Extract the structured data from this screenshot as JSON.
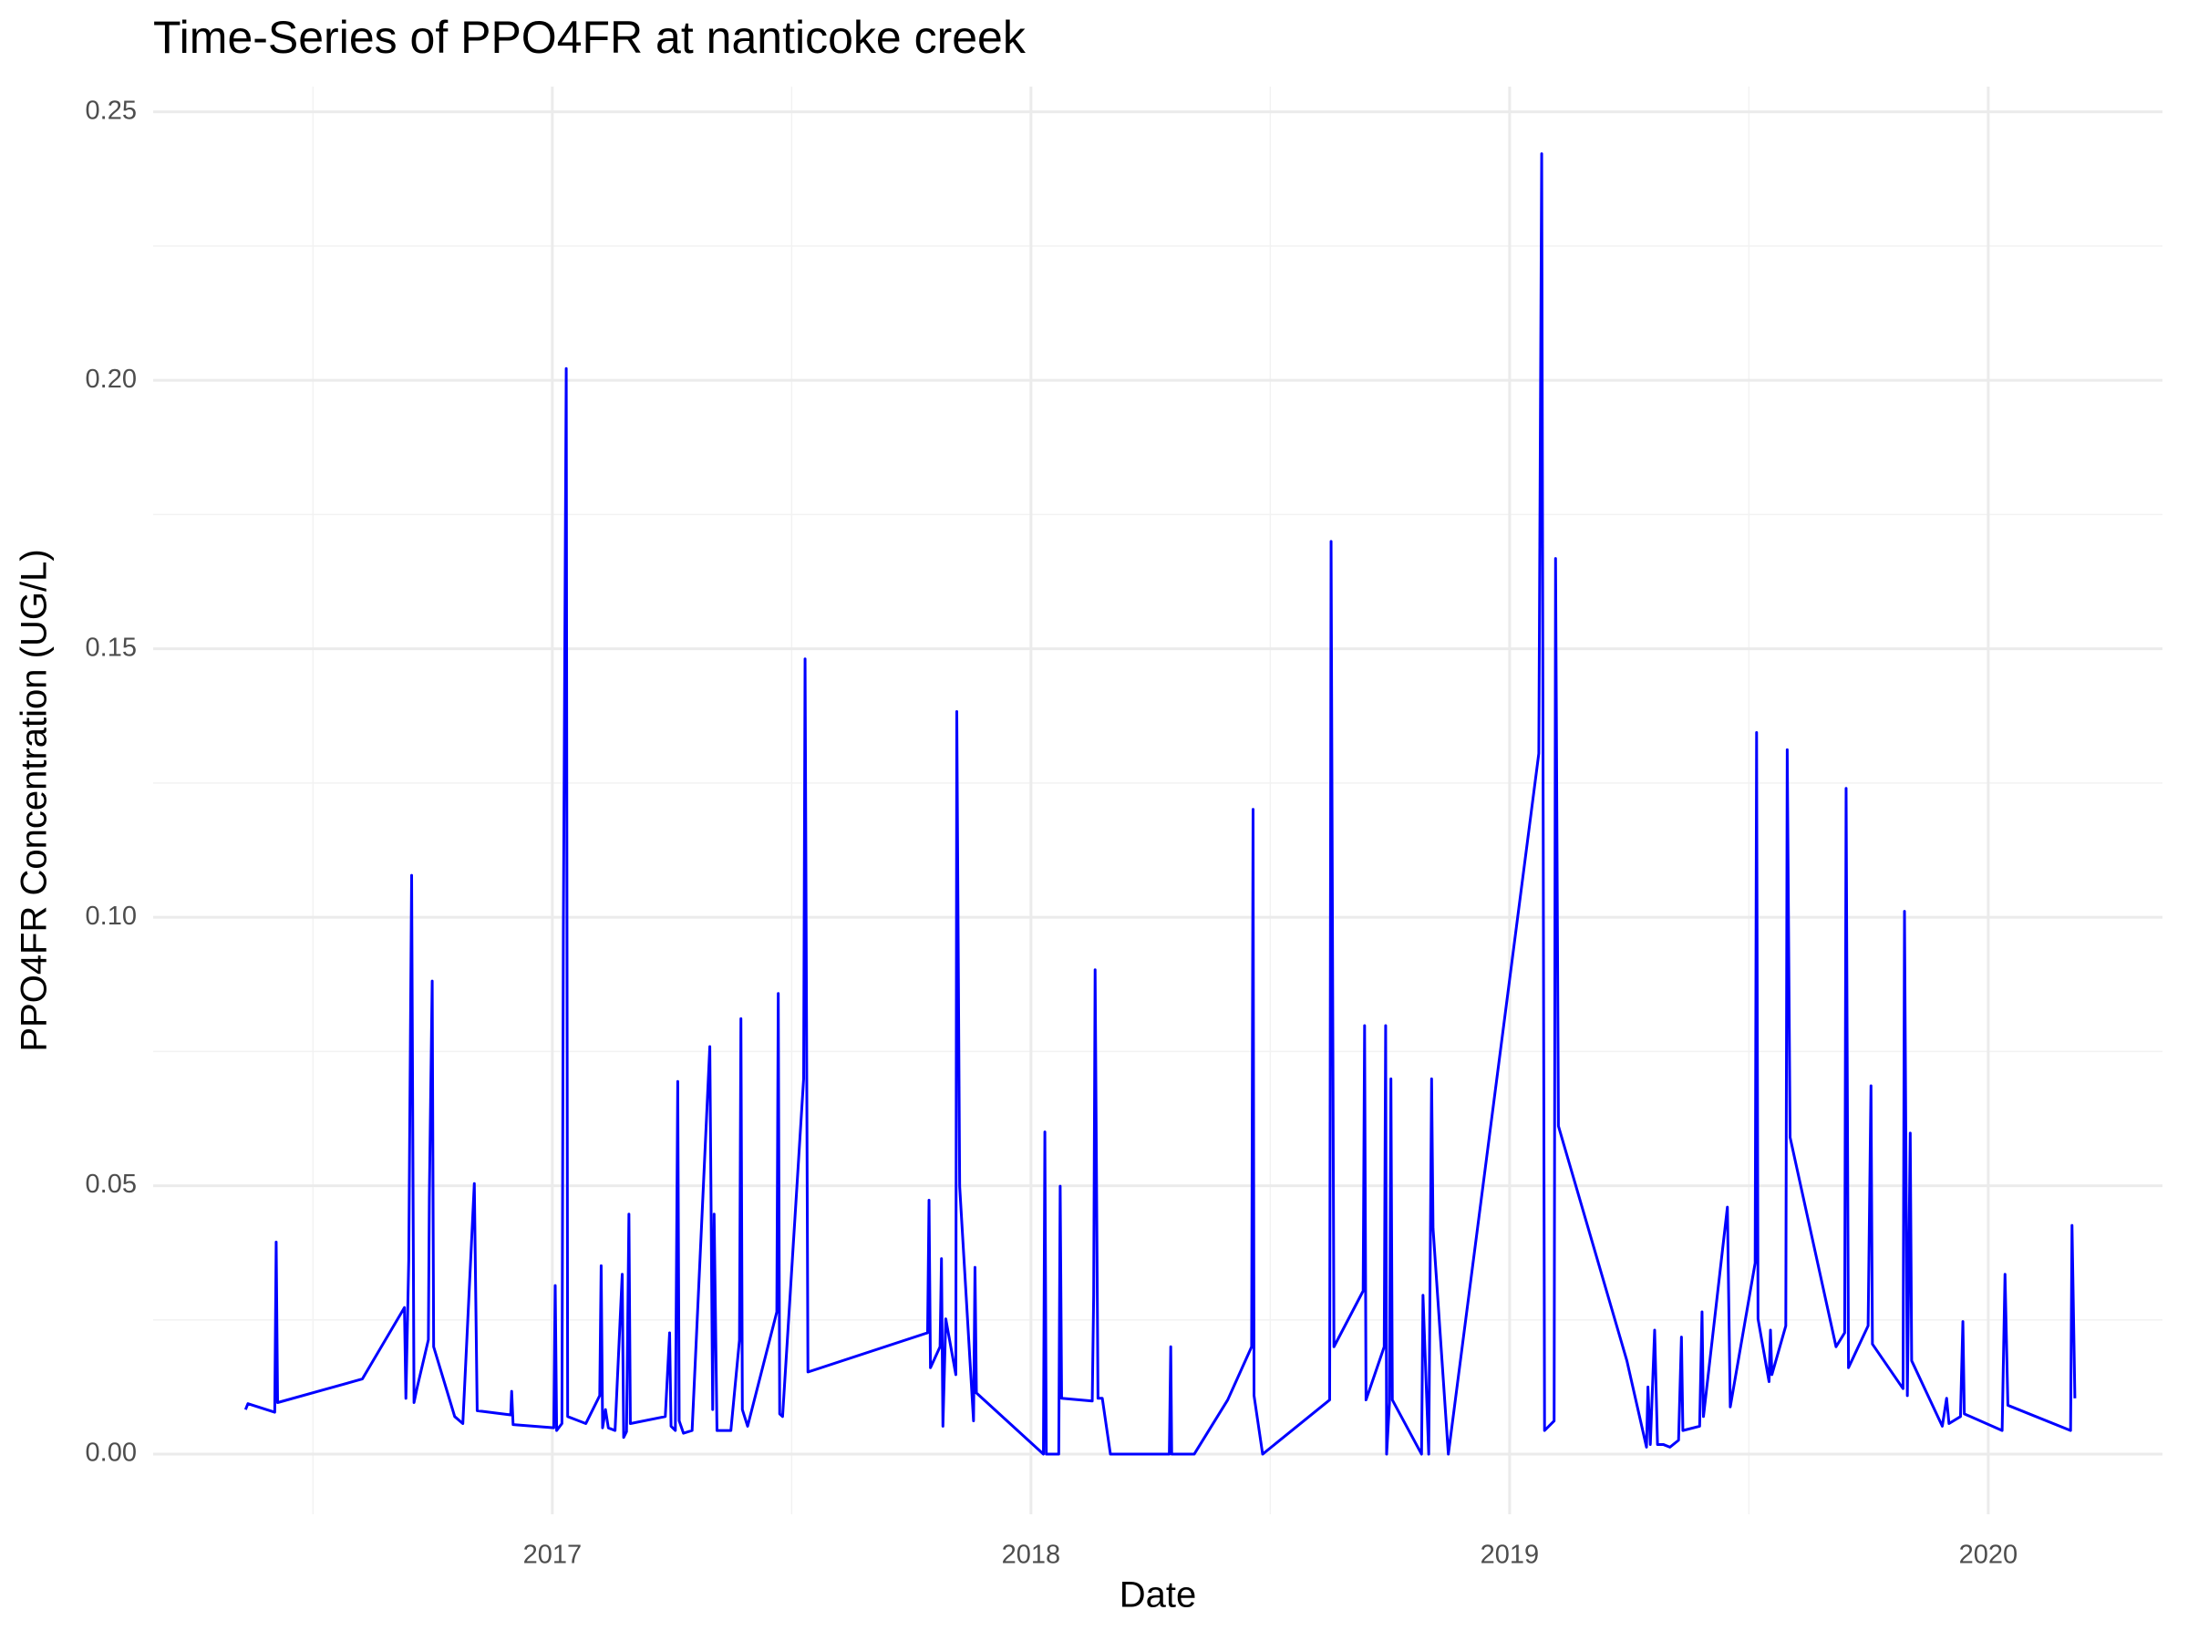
{
  "chart_data": {
    "type": "line",
    "title": "Time-Series of PPO4FR at nanticoke creek",
    "x_label": "Date",
    "y_label": "PPO4FR Concentration (UG/L)",
    "color": "#0000ff",
    "grid": true,
    "xlim": [
      2016.166,
      2020.364
    ],
    "xticks": [
      2017,
      2018,
      2019,
      2020
    ],
    "ylim": [
      -0.0112,
      0.2547
    ],
    "yticks": [
      {
        "value": 0,
        "label": "0.00"
      },
      0.05,
      {
        "value": 0.1,
        "label": "0.10"
      },
      0.15,
      {
        "value": 0.2,
        "label": "0.20"
      },
      0.25
    ],
    "x": [
      2016.359,
      2016.364,
      2016.42,
      2016.423,
      2016.426,
      2016.603,
      2016.691,
      2016.694,
      2016.7,
      2016.706,
      2016.711,
      2016.717,
      2016.741,
      2016.743,
      2016.749,
      2016.752,
      2016.796,
      2016.813,
      2016.837,
      2016.843,
      2016.913,
      2016.915,
      2016.918,
      2017.003,
      2017.006,
      2017.009,
      2017.02,
      2017.023,
      2017.029,
      2017.032,
      2017.07,
      2017.099,
      2017.102,
      2017.105,
      2017.111,
      2017.117,
      2017.131,
      2017.146,
      2017.149,
      2017.155,
      2017.16,
      2017.163,
      2017.236,
      2017.245,
      2017.248,
      2017.257,
      2017.262,
      2017.265,
      2017.274,
      2017.292,
      2017.329,
      2017.335,
      2017.338,
      2017.344,
      2017.373,
      2017.391,
      2017.394,
      2017.397,
      2017.408,
      2017.469,
      2017.472,
      2017.475,
      2017.481,
      2017.525,
      2017.528,
      2017.534,
      2017.784,
      2017.787,
      2017.79,
      2017.81,
      2017.813,
      2017.816,
      2017.822,
      2017.843,
      2017.845,
      2017.851,
      2017.88,
      2017.883,
      2017.886,
      2018.026,
      2018.029,
      2018.032,
      2018.058,
      2018.061,
      2018.064,
      2018.128,
      2018.131,
      2018.134,
      2018.14,
      2018.149,
      2018.166,
      2018.289,
      2018.292,
      2018.294,
      2018.341,
      2018.411,
      2018.461,
      2018.464,
      2018.466,
      2018.484,
      2018.624,
      2018.627,
      2018.633,
      2018.694,
      2018.697,
      2018.7,
      2018.738,
      2018.741,
      2018.743,
      2018.749,
      2018.752,
      2018.755,
      2018.816,
      2018.819,
      2018.831,
      2018.837,
      2018.84,
      2018.872,
      2019.061,
      2019.067,
      2019.073,
      2019.093,
      2019.096,
      2019.102,
      2019.245,
      2019.286,
      2019.289,
      2019.294,
      2019.303,
      2019.309,
      2019.321,
      2019.335,
      2019.353,
      2019.359,
      2019.362,
      2019.397,
      2019.402,
      2019.405,
      2019.455,
      2019.461,
      2019.513,
      2019.516,
      2019.519,
      2019.542,
      2019.545,
      2019.548,
      2019.577,
      2019.58,
      2019.586,
      2019.682,
      2019.7,
      2019.703,
      2019.708,
      2019.749,
      2019.755,
      2019.758,
      2019.822,
      2019.825,
      2019.831,
      2019.837,
      2019.84,
      2019.904,
      2019.913,
      2019.918,
      2019.942,
      2019.947,
      2019.95,
      2020.029,
      2020.035,
      2020.041,
      2020.172,
      2020.175,
      2020.181
    ],
    "values": [
      0.0083,
      0.0094,
      0.0078,
      0.0395,
      0.0096,
      0.014,
      0.0273,
      0.0104,
      0.0361,
      0.1078,
      0.0096,
      0.0122,
      0.0213,
      0.0478,
      0.0881,
      0.02,
      0.007,
      0.0057,
      0.0504,
      0.0081,
      0.0073,
      0.0117,
      0.0055,
      0.0049,
      0.0314,
      0.0044,
      0.0057,
      0.0972,
      0.2022,
      0.007,
      0.0057,
      0.0109,
      0.0351,
      0.0049,
      0.0083,
      0.0049,
      0.0044,
      0.0335,
      0.0031,
      0.0042,
      0.0447,
      0.0057,
      0.007,
      0.0226,
      0.0052,
      0.0044,
      0.0694,
      0.0062,
      0.0039,
      0.0044,
      0.0759,
      0.0083,
      0.0447,
      0.0044,
      0.0044,
      0.0213,
      0.0811,
      0.0083,
      0.0052,
      0.0265,
      0.0858,
      0.0075,
      0.007,
      0.0699,
      0.1481,
      0.0153,
      0.0226,
      0.0473,
      0.0161,
      0.02,
      0.0364,
      0.0052,
      0.0252,
      0.0148,
      0.1383,
      0.0499,
      0.0062,
      0.0348,
      0.0114,
      0,
      0.06,
      0,
      0,
      0.0499,
      0.0104,
      0.0099,
      0.0296,
      0.0902,
      0.0104,
      0.0104,
      0,
      0,
      0.02,
      0,
      0,
      0.0101,
      0.02,
      0.1201,
      0.0109,
      0,
      0.0101,
      0.17,
      0.02,
      0.0304,
      0.0798,
      0.0101,
      0.02,
      0.0798,
      0,
      0.0096,
      0.0699,
      0.0101,
      0,
      0.0296,
      0,
      0.0699,
      0.0421,
      0,
      0.1305,
      0.2422,
      0.0044,
      0.0062,
      0.1668,
      0.0611,
      0.0174,
      0.0013,
      0.0125,
      0.0018,
      0.0231,
      0.0018,
      0.0018,
      0.0013,
      0.0026,
      0.0218,
      0.0044,
      0.0052,
      0.0265,
      0.007,
      0.046,
      0.0088,
      0.0356,
      0.1344,
      0.0252,
      0.0135,
      0.0231,
      0.0148,
      0.0239,
      0.1312,
      0.059,
      0.02,
      0.0226,
      0.124,
      0.0161,
      0.0239,
      0.0686,
      0.0205,
      0.0122,
      0.1011,
      0.0109,
      0.0598,
      0.0174,
      0.0052,
      0.0104,
      0.0057,
      0.007,
      0.0247,
      0.0075,
      0.0044,
      0.0335,
      0.0091,
      0.0044,
      0.0426,
      0.0104
    ]
  }
}
